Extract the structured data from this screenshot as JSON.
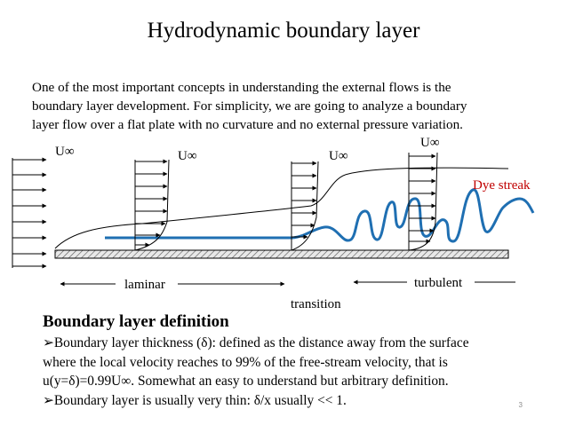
{
  "slide": {
    "title": "Hydrodynamic boundary layer",
    "intro_lines": [
      "One of the most important concepts in understanding the external flows is the",
      "boundary layer development.  For simplicity, we are going to analyze a boundary",
      "layer flow over a flat plate with no curvature and no external pressure variation."
    ],
    "diagram": {
      "freestream_labels": [
        "U∞",
        "U∞",
        "U∞",
        "U∞"
      ],
      "dye_streak_label": "Dye streak",
      "laminar_label": "laminar",
      "transition_label": "transition",
      "turbulent_label": "turbulent",
      "colors": {
        "dye": "#1f6fb2",
        "dye_label": "#c00000",
        "plate": "#000000"
      }
    },
    "definition": {
      "heading": "Boundary layer definition",
      "lines": [
        "➢Boundary layer thickness (δ): defined as the distance away from the surface",
        "where the local velocity reaches to 99% of the free-stream velocity, that is",
        "u(y=δ)=0.99U∞.  Somewhat an easy to understand but arbitrary definition.",
        "➢Boundary layer is usually very thin: δ/x usually << 1."
      ]
    },
    "page_number": "3"
  }
}
